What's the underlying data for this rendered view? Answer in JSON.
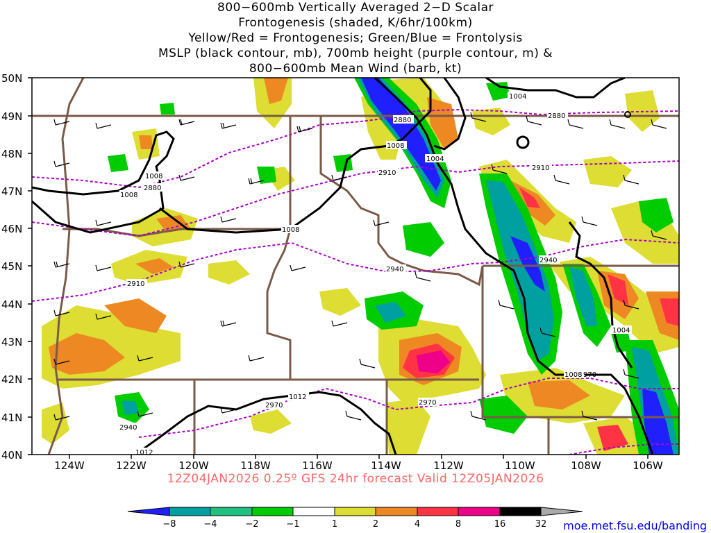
{
  "title": {
    "line1": "800−600mb Vertically Averaged 2−D Scalar",
    "line2": "Frontogenesis (shaded, K/6hr/100km)",
    "line3": "Yellow/Red = Frontogenesis;  Green/Blue = Frontolysis",
    "line4": "MSLP (black contour, mb), 700mb height (purple contour, m) &",
    "line5": "800−600mb Mean Wind (barb, kt)"
  },
  "axes": {
    "lat_labels": [
      "50N",
      "49N",
      "48N",
      "47N",
      "46N",
      "45N",
      "44N",
      "43N",
      "42N",
      "41N",
      "40N"
    ],
    "lon_labels": [
      "124W",
      "122W",
      "120W",
      "118W",
      "116W",
      "114W",
      "112W",
      "110W",
      "108W",
      "106W"
    ]
  },
  "contour_labels": {
    "mslp": [
      "1004",
      "1008",
      "1008",
      "1008",
      "1004",
      "1008",
      "1012",
      "1012",
      "1004",
      "1008",
      "970"
    ],
    "height": [
      "2880",
      "2880",
      "2910",
      "2910",
      "2910",
      "2940",
      "2940",
      "2940",
      "2970",
      "2970",
      "2880"
    ]
  },
  "footer": "12Z04JAN2026 0.25º GFS 24hr forecast Valid 12Z05JAN2026",
  "credit": "moe.met.fsu.edu/banding",
  "colorbar": {
    "labels": [
      "−8",
      "−4",
      "−2",
      "−1",
      "1",
      "2",
      "4",
      "8",
      "16",
      "32"
    ],
    "colors": [
      "#2020ff",
      "#00a0a0",
      "#20c080",
      "#00cc00",
      "#ffffff",
      "#dddd33",
      "#ee8822",
      "#ff3344",
      "#ee0088",
      "#000000"
    ]
  },
  "colors": {
    "state_borders": "#7a5a48",
    "mslp": "#000000",
    "height": "#aa00cc",
    "frontogenesis_weak": "#dddd33",
    "frontogenesis_mod": "#ee8822",
    "frontogenesis_strong": "#ff3344",
    "frontogenesis_max": "#ee0088",
    "frontolysis_weak": "#00cc00",
    "frontolysis_mod": "#00a0a0",
    "frontolysis_strong": "#2020ff"
  }
}
